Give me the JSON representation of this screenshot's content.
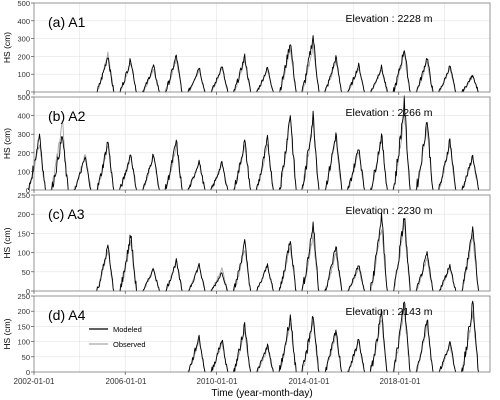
{
  "x_axis": {
    "label": "Time (year-month-day)",
    "tick_labels": [
      "2002-01-01",
      "2006-01-01",
      "2010-01-01",
      "2014-01-01",
      "2018-01-01"
    ]
  },
  "legend": {
    "entries": [
      {
        "label": "Modeled",
        "color": "#000000"
      },
      {
        "label": "Observed",
        "color": "#a6a6a6"
      }
    ]
  },
  "colors": {
    "modeled": "#000000",
    "observed": "#a6a6a6",
    "grid": "#e3e3e3",
    "frame": "#7f7f7f"
  },
  "chart_data": [
    {
      "type": "line",
      "panel_label": "(a) A1",
      "annotation": "Elevation : 2228 m",
      "ylabel": "HS (cm)",
      "ylim": [
        0,
        500
      ],
      "yticks": [
        0,
        100,
        200,
        300,
        400,
        500
      ],
      "xlim": [
        "2002-01-01",
        "2021-12-31"
      ],
      "grid": true,
      "series": [
        {
          "name": "Modeled",
          "color": "#000000",
          "winter_peaks": [
            {
              "year": 2005,
              "peak": 210
            },
            {
              "year": 2006,
              "peak": 190
            },
            {
              "year": 2007,
              "peak": 150
            },
            {
              "year": 2008,
              "peak": 210
            },
            {
              "year": 2009,
              "peak": 145
            },
            {
              "year": 2010,
              "peak": 150
            },
            {
              "year": 2011,
              "peak": 205
            },
            {
              "year": 2012,
              "peak": 140
            },
            {
              "year": 2013,
              "peak": 290
            },
            {
              "year": 2014,
              "peak": 320
            },
            {
              "year": 2015,
              "peak": 200
            },
            {
              "year": 2016,
              "peak": 155
            },
            {
              "year": 2017,
              "peak": 145
            },
            {
              "year": 2018,
              "peak": 250
            },
            {
              "year": 2019,
              "peak": 200
            },
            {
              "year": 2020,
              "peak": 150
            },
            {
              "year": 2021,
              "peak": 100
            }
          ]
        },
        {
          "name": "Observed",
          "color": "#a6a6a6",
          "winter_peaks": [
            {
              "year": 2005,
              "peak": 225
            },
            {
              "year": 2006,
              "peak": 170
            },
            {
              "year": 2007,
              "peak": 130
            },
            {
              "year": 2008,
              "peak": 190
            },
            {
              "year": 2009,
              "peak": 130
            },
            {
              "year": 2010,
              "peak": 140
            },
            {
              "year": 2011,
              "peak": 180
            },
            {
              "year": 2012,
              "peak": 130
            },
            {
              "year": 2013,
              "peak": 250
            },
            {
              "year": 2014,
              "peak": 270
            },
            {
              "year": 2015,
              "peak": 180
            },
            {
              "year": 2016,
              "peak": 140
            },
            {
              "year": 2017,
              "peak": 130
            },
            {
              "year": 2018,
              "peak": 220
            },
            {
              "year": 2019,
              "peak": 180
            },
            {
              "year": 2020,
              "peak": 140
            },
            {
              "year": 2021,
              "peak": 90
            }
          ]
        }
      ]
    },
    {
      "type": "line",
      "panel_label": "(b) A2",
      "annotation": "Elevation : 2266 m",
      "ylabel": "HS (cm)",
      "ylim": [
        0,
        500
      ],
      "yticks": [
        0,
        100,
        200,
        300,
        400,
        500
      ],
      "xlim": [
        "2002-01-01",
        "2021-12-31"
      ],
      "grid": true,
      "series": [
        {
          "name": "Modeled",
          "color": "#000000",
          "winter_peaks": [
            {
              "year": 2002,
              "peak": 310
            },
            {
              "year": 2003,
              "peak": 300
            },
            {
              "year": 2004,
              "peak": 180
            },
            {
              "year": 2005,
              "peak": 270
            },
            {
              "year": 2006,
              "peak": 200
            },
            {
              "year": 2007,
              "peak": 200
            },
            {
              "year": 2008,
              "peak": 270
            },
            {
              "year": 2009,
              "peak": 160
            },
            {
              "year": 2010,
              "peak": 150
            },
            {
              "year": 2011,
              "peak": 270
            },
            {
              "year": 2012,
              "peak": 280
            },
            {
              "year": 2013,
              "peak": 420
            },
            {
              "year": 2014,
              "peak": 410
            },
            {
              "year": 2015,
              "peak": 310
            },
            {
              "year": 2016,
              "peak": 240
            },
            {
              "year": 2017,
              "peak": 300
            },
            {
              "year": 2018,
              "peak": 480
            },
            {
              "year": 2019,
              "peak": 390
            },
            {
              "year": 2020,
              "peak": 280
            },
            {
              "year": 2021,
              "peak": 190
            }
          ]
        },
        {
          "name": "Observed",
          "color": "#a6a6a6",
          "winter_peaks": [
            {
              "year": 2002,
              "peak": 260
            },
            {
              "year": 2003,
              "peak": 380
            },
            {
              "year": 2004,
              "peak": 200
            },
            {
              "year": 2005,
              "peak": 250
            },
            {
              "year": 2006,
              "peak": 190
            },
            {
              "year": 2007,
              "peak": 190
            },
            {
              "year": 2008,
              "peak": 250
            },
            {
              "year": 2009,
              "peak": 150
            },
            {
              "year": 2010,
              "peak": 150
            },
            {
              "year": 2011,
              "peak": 250
            },
            {
              "year": 2012,
              "peak": 260
            },
            {
              "year": 2013,
              "peak": 390
            },
            {
              "year": 2014,
              "peak": 390
            },
            {
              "year": 2015,
              "peak": 290
            },
            {
              "year": 2016,
              "peak": 220
            },
            {
              "year": 2017,
              "peak": 280
            },
            {
              "year": 2018,
              "peak": 420
            },
            {
              "year": 2019,
              "peak": 350
            },
            {
              "year": 2020,
              "peak": 260
            },
            {
              "year": 2021,
              "peak": 180
            }
          ]
        }
      ]
    },
    {
      "type": "line",
      "panel_label": "(c) A3",
      "annotation": "Elevation : 2230 m",
      "ylabel": "HS (cm)",
      "ylim": [
        0,
        250
      ],
      "yticks": [
        0,
        50,
        100,
        150,
        200,
        250
      ],
      "xlim": [
        "2002-01-01",
        "2021-12-31"
      ],
      "grid": true,
      "series": [
        {
          "name": "Modeled",
          "color": "#000000",
          "winter_peaks": [
            {
              "year": 2005,
              "peak": 120
            },
            {
              "year": 2006,
              "peak": 150
            },
            {
              "year": 2007,
              "peak": 60
            },
            {
              "year": 2008,
              "peak": 80
            },
            {
              "year": 2009,
              "peak": 70
            },
            {
              "year": 2010,
              "peak": 50
            },
            {
              "year": 2011,
              "peak": 130
            },
            {
              "year": 2012,
              "peak": 70
            },
            {
              "year": 2013,
              "peak": 140
            },
            {
              "year": 2014,
              "peak": 180
            },
            {
              "year": 2015,
              "peak": 120
            },
            {
              "year": 2016,
              "peak": 70
            },
            {
              "year": 2017,
              "peak": 200
            },
            {
              "year": 2018,
              "peak": 200
            },
            {
              "year": 2019,
              "peak": 100
            },
            {
              "year": 2020,
              "peak": 70
            },
            {
              "year": 2021,
              "peak": 170
            }
          ]
        },
        {
          "name": "Observed",
          "color": "#a6a6a6",
          "winter_peaks": [
            {
              "year": 2005,
              "peak": 110
            },
            {
              "year": 2006,
              "peak": 130
            },
            {
              "year": 2007,
              "peak": 60
            },
            {
              "year": 2008,
              "peak": 80
            },
            {
              "year": 2009,
              "peak": 70
            },
            {
              "year": 2010,
              "peak": 60
            },
            {
              "year": 2011,
              "peak": 110
            },
            {
              "year": 2012,
              "peak": 70
            },
            {
              "year": 2013,
              "peak": 120
            },
            {
              "year": 2014,
              "peak": 150
            },
            {
              "year": 2015,
              "peak": 100
            },
            {
              "year": 2016,
              "peak": 60
            },
            {
              "year": 2017,
              "peak": 170
            },
            {
              "year": 2018,
              "peak": 180
            },
            {
              "year": 2019,
              "peak": 90
            },
            {
              "year": 2020,
              "peak": 60
            },
            {
              "year": 2021,
              "peak": 150
            }
          ]
        }
      ]
    },
    {
      "type": "line",
      "panel_label": "(d) A4",
      "annotation": "Elevation : 2143 m",
      "ylabel": "HS (cm)",
      "ylim": [
        0,
        250
      ],
      "yticks": [
        0,
        50,
        100,
        150,
        200,
        250
      ],
      "xlim": [
        "2002-01-01",
        "2021-12-31"
      ],
      "grid": true,
      "series": [
        {
          "name": "Modeled",
          "color": "#000000",
          "winter_peaks": [
            {
              "year": 2009,
              "peak": 120
            },
            {
              "year": 2010,
              "peak": 110
            },
            {
              "year": 2011,
              "peak": 160
            },
            {
              "year": 2012,
              "peak": 90
            },
            {
              "year": 2013,
              "peak": 190
            },
            {
              "year": 2014,
              "peak": 190
            },
            {
              "year": 2015,
              "peak": 140
            },
            {
              "year": 2016,
              "peak": 110
            },
            {
              "year": 2017,
              "peak": 200
            },
            {
              "year": 2018,
              "peak": 240
            },
            {
              "year": 2019,
              "peak": 180
            },
            {
              "year": 2020,
              "peak": 100
            },
            {
              "year": 2021,
              "peak": 230
            }
          ]
        },
        {
          "name": "Observed",
          "color": "#a6a6a6",
          "winter_peaks": [
            {
              "year": 2009,
              "peak": 110
            },
            {
              "year": 2010,
              "peak": 100
            },
            {
              "year": 2011,
              "peak": 140
            },
            {
              "year": 2012,
              "peak": 80
            },
            {
              "year": 2013,
              "peak": 170
            },
            {
              "year": 2014,
              "peak": 170
            },
            {
              "year": 2015,
              "peak": 130
            },
            {
              "year": 2016,
              "peak": 100
            },
            {
              "year": 2017,
              "peak": 180
            },
            {
              "year": 2018,
              "peak": 220
            },
            {
              "year": 2019,
              "peak": 160
            },
            {
              "year": 2020,
              "peak": 90
            },
            {
              "year": 2021,
              "peak": 200
            }
          ]
        }
      ]
    }
  ]
}
